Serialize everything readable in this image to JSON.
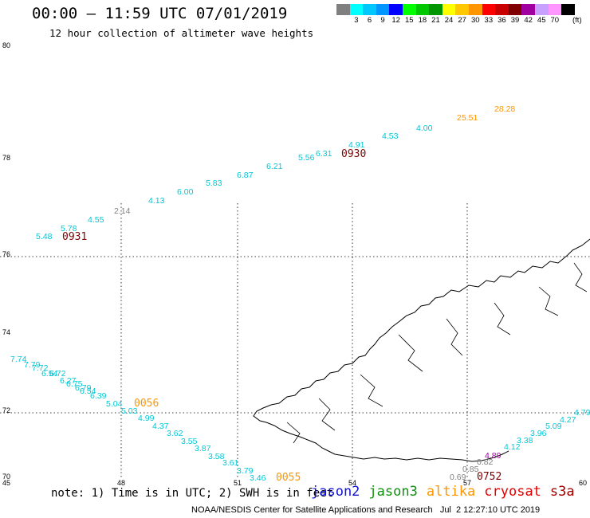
{
  "header": {
    "title": "00:00 – 11:59 UTC 07/01/2019",
    "subtitle": "12 hour collection of altimeter wave heights"
  },
  "colorbar": {
    "unit": "(ft)",
    "items": [
      {
        "label": "",
        "color": "#7f7f7f"
      },
      {
        "label": "3",
        "color": "#00ffff"
      },
      {
        "label": "6",
        "color": "#00c8ff"
      },
      {
        "label": "9",
        "color": "#0096ff"
      },
      {
        "label": "12",
        "color": "#0000ff"
      },
      {
        "label": "15",
        "color": "#00ff00"
      },
      {
        "label": "18",
        "color": "#00c800"
      },
      {
        "label": "21",
        "color": "#009600"
      },
      {
        "label": "24",
        "color": "#ffff00"
      },
      {
        "label": "27",
        "color": "#ffc800"
      },
      {
        "label": "30",
        "color": "#ff9600"
      },
      {
        "label": "33",
        "color": "#ff0000"
      },
      {
        "label": "36",
        "color": "#c80000"
      },
      {
        "label": "39",
        "color": "#800000"
      },
      {
        "label": "42",
        "color": "#a000a0"
      },
      {
        "label": "45",
        "color": "#c8a0ff"
      },
      {
        "label": "70",
        "color": "#ff96ff"
      },
      {
        "label": "",
        "color": "#000000"
      }
    ]
  },
  "map": {
    "lat_labels": [
      "80",
      "78",
      "76",
      "74",
      "72",
      "70"
    ],
    "lon_labels": [
      "45",
      "48",
      "51",
      "54",
      "57",
      "60"
    ],
    "track_cyan_ne": [
      "5.48",
      "5.78",
      "4.55",
      "4.13",
      "6.00",
      "5.83",
      "6.87",
      "6.21",
      "5.56",
      "6.31",
      "4.91",
      "4.53",
      "4.00"
    ],
    "track_gray_ne": "2.14",
    "track_orange_ne": [
      "25.51",
      "28.28"
    ],
    "time_labels": [
      "0931",
      "0930",
      "0056",
      "0055",
      "0752"
    ],
    "track_cyan_sw": [
      "7.74",
      "7.79",
      "7.72",
      "6.54",
      "6.72",
      "6.27",
      "6.75",
      "6.79",
      "6.54",
      "6.39",
      "5.04",
      "5.03",
      "4.99",
      "4.37",
      "3.62",
      "3.55",
      "3.87",
      "3.58",
      "3.61",
      "3.79",
      "3.46"
    ],
    "track_cyan_se": [
      "4.79",
      "4.27",
      "5.09",
      "3.96",
      "3.38",
      "4.12"
    ],
    "track_purple_se": "4.89",
    "track_gray_se": [
      "0.69",
      "0.85",
      "0.82"
    ]
  },
  "footer": {
    "note": "note: 1) Time is in UTC; 2) SWH is in feet",
    "legend": [
      {
        "label": "jason2",
        "color": "#1010d0"
      },
      {
        "label": "jason3",
        "color": "#109010"
      },
      {
        "label": "altika",
        "color": "#ff9600"
      },
      {
        "label": "cryosat",
        "color": "#e00000"
      },
      {
        "label": "s3a",
        "color": "#a00000"
      }
    ],
    "credit": "NOAA/NESDIS Center for Satellite Applications and Research   Jul  2 12:27:10 UTC 2019"
  }
}
